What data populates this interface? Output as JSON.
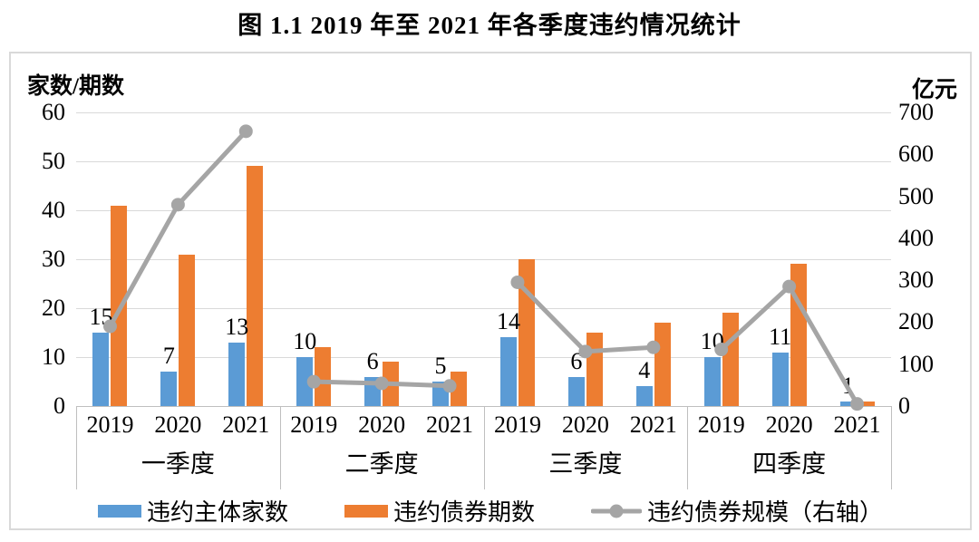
{
  "title": "图 1.1  2019 年至 2021 年各季度违约情况统计",
  "colors": {
    "bar_blue": "#5B9BD5",
    "bar_orange": "#ED7D31",
    "line_gray": "#A5A5A5",
    "gridline": "#D9D9D9",
    "axis_line": "#BFBFBF"
  },
  "chart_data": {
    "type": "bar",
    "subtype": "combo-bar-line-dual-axis",
    "title": "图 1.1  2019 年至 2021 年各季度违约情况统计",
    "grid": true,
    "legend_position": "bottom",
    "groups": [
      "一季度",
      "二季度",
      "三季度",
      "四季度"
    ],
    "years_per_group": [
      "2019",
      "2020",
      "2021"
    ],
    "categories": [
      "一季度 2019",
      "一季度 2020",
      "一季度 2021",
      "二季度 2019",
      "二季度 2020",
      "二季度 2021",
      "三季度 2019",
      "三季度 2020",
      "三季度 2021",
      "四季度 2019",
      "四季度 2020",
      "四季度 2021"
    ],
    "left_axis": {
      "title": "家数/期数",
      "min": 0,
      "max": 60,
      "tick_step": 10,
      "ticks": [
        "0",
        "10",
        "20",
        "30",
        "40",
        "50",
        "60"
      ]
    },
    "right_axis": {
      "title": "亿元",
      "min": 0,
      "max": 700,
      "tick_step": 100,
      "ticks": [
        "0",
        "100",
        "200",
        "300",
        "400",
        "500",
        "600",
        "700"
      ]
    },
    "series": [
      {
        "name": "违约主体家数",
        "type": "bar",
        "axis": "left",
        "color": "#5B9BD5",
        "data_labels": true,
        "values": [
          15,
          7,
          13,
          10,
          6,
          5,
          14,
          6,
          4,
          10,
          11,
          1
        ]
      },
      {
        "name": "违约债券期数",
        "type": "bar",
        "axis": "left",
        "color": "#ED7D31",
        "data_labels": false,
        "values": [
          41,
          31,
          49,
          12,
          9,
          7,
          30,
          15,
          17,
          19,
          29,
          1
        ]
      },
      {
        "name": "违约债券规模（右轴）",
        "type": "line",
        "axis": "right",
        "color": "#A5A5A5",
        "data_labels": false,
        "values_estimated": true,
        "segmented_by_group": true,
        "values": [
          190,
          480,
          655,
          58,
          54,
          48,
          295,
          130,
          140,
          135,
          285,
          5
        ]
      }
    ]
  }
}
